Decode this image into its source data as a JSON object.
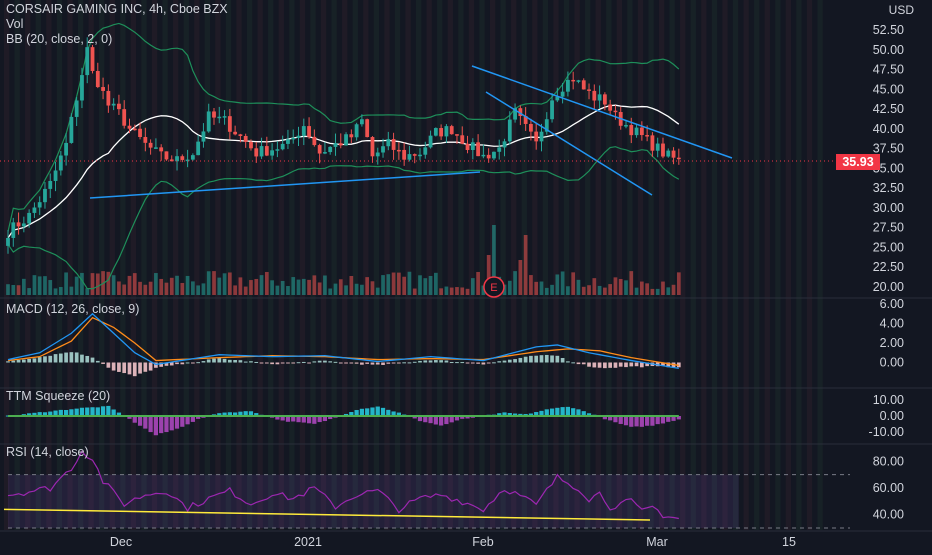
{
  "header": {
    "symbol_line": "CORSAIR GAMING INC, 4h, Cboe BZX",
    "vol_label": "Vol",
    "bb_label": "BB (20, close, 2, 0)",
    "currency": "USD",
    "last_price": "35.93",
    "earnings_marker": "E"
  },
  "panes": {
    "macd_label": "MACD (12, 26, close, 9)",
    "ttm_label": "TTM Squeeze (20)",
    "rsi_label": "RSI (14, close)"
  },
  "colors": {
    "background": "#131722",
    "up": "#26a69a",
    "down": "#ef5350",
    "bb_basis": "#ffffff",
    "bb_band": "#1e8f5a",
    "trendline": "#2196f3",
    "macd_line": "#2196f3",
    "signal_line": "#ff8c1a",
    "rsi_line": "#9c27b0",
    "rsi_trend": "#ffeb3b"
  },
  "chart_data": [
    {
      "type": "candlestick",
      "title": "CORSAIR GAMING INC, 4h, Cboe BZX",
      "ylabel": "USD",
      "ylim": [
        20,
        52.5
      ],
      "y_ticks": [
        "52.50",
        "50.00",
        "47.50",
        "45.00",
        "42.50",
        "40.00",
        "37.50",
        "35.00",
        "32.50",
        "30.00",
        "27.50",
        "25.00",
        "22.50",
        "20.00"
      ],
      "x_ticks": [
        "Dec",
        "2021",
        "Feb",
        "Mar",
        "15"
      ],
      "last_price": 35.93,
      "close_path": [
        [
          0,
          27
        ],
        [
          4,
          29
        ],
        [
          8,
          33
        ],
        [
          11,
          38
        ],
        [
          13,
          44
        ],
        [
          15,
          50
        ],
        [
          16,
          47
        ],
        [
          17,
          46
        ],
        [
          19,
          43
        ],
        [
          21,
          42
        ],
        [
          23,
          40
        ],
        [
          26,
          38
        ],
        [
          29,
          36.5
        ],
        [
          32,
          36
        ],
        [
          35,
          37
        ],
        [
          38,
          41.5
        ],
        [
          41,
          41
        ],
        [
          44,
          39
        ],
        [
          47,
          37
        ],
        [
          50,
          37.5
        ],
        [
          53,
          38
        ],
        [
          56,
          40.5
        ],
        [
          59,
          37
        ],
        [
          62,
          38
        ],
        [
          65,
          39
        ],
        [
          67,
          41
        ],
        [
          69,
          36.5
        ],
        [
          72,
          38
        ],
        [
          75,
          36.5
        ],
        [
          78,
          37
        ],
        [
          81,
          39.5
        ],
        [
          84,
          40
        ],
        [
          87,
          38
        ],
        [
          90,
          36.5
        ],
        [
          93,
          37.5
        ],
        [
          96,
          42
        ],
        [
          98,
          40
        ],
        [
          100,
          38
        ],
        [
          103,
          44
        ],
        [
          105,
          45.5
        ],
        [
          107,
          46.5
        ],
        [
          109,
          45
        ],
        [
          111,
          44
        ],
        [
          113,
          43.5
        ],
        [
          115,
          41.5
        ],
        [
          117,
          40.5
        ],
        [
          119,
          39.5
        ],
        [
          121,
          38.5
        ],
        [
          123,
          37.5
        ],
        [
          125,
          36.5
        ],
        [
          127,
          36
        ]
      ],
      "events": [
        "E"
      ]
    },
    {
      "type": "line",
      "title": "MACD (12, 26, close, 9)",
      "ylim": [
        -2,
        6
      ],
      "y_ticks": [
        "6.00",
        "4.00",
        "2.00",
        "0.00"
      ],
      "series": [
        {
          "values": [
            [
              0,
              0.3
            ],
            [
              6,
              1
            ],
            [
              12,
              3
            ],
            [
              16,
              5
            ],
            [
              20,
              3
            ],
            [
              24,
              1
            ],
            [
              28,
              -0.2
            ],
            [
              40,
              0.8
            ],
            [
              50,
              0.6
            ],
            [
              60,
              0.7
            ],
            [
              70,
              0.1
            ],
            [
              80,
              0.6
            ],
            [
              90,
              0.2
            ],
            [
              100,
              1.6
            ],
            [
              104,
              1.8
            ],
            [
              110,
              1
            ],
            [
              118,
              0.2
            ],
            [
              127,
              -0.6
            ]
          ]
        },
        {
          "values": [
            [
              0,
              0.2
            ],
            [
              6,
              0.6
            ],
            [
              12,
              2.2
            ],
            [
              16,
              4.6
            ],
            [
              20,
              3.6
            ],
            [
              24,
              2
            ],
            [
              28,
              0.2
            ],
            [
              40,
              0.5
            ],
            [
              50,
              0.7
            ],
            [
              60,
              0.6
            ],
            [
              70,
              0.3
            ],
            [
              80,
              0.4
            ],
            [
              90,
              0.3
            ],
            [
              100,
              1.1
            ],
            [
              106,
              1.4
            ],
            [
              112,
              1.2
            ],
            [
              118,
              0.5
            ],
            [
              127,
              -0.3
            ]
          ]
        }
      ]
    },
    {
      "type": "area",
      "title": "TTM Squeeze (20)",
      "ylim": [
        -15,
        15
      ],
      "y_ticks": [
        "10.00",
        "0.00",
        "-10.00"
      ],
      "series": [
        {
          "values": [
            [
              0,
              0
            ],
            [
              8,
              3
            ],
            [
              14,
              5
            ],
            [
              19,
              6
            ],
            [
              22,
              0
            ],
            [
              25,
              -6
            ],
            [
              28,
              -12
            ],
            [
              32,
              -8
            ],
            [
              36,
              -2
            ],
            [
              40,
              2
            ],
            [
              46,
              3
            ],
            [
              52,
              -3
            ],
            [
              58,
              -5
            ],
            [
              62,
              -1
            ],
            [
              66,
              4
            ],
            [
              70,
              6
            ],
            [
              74,
              2
            ],
            [
              78,
              -3
            ],
            [
              82,
              -6
            ],
            [
              86,
              -2
            ],
            [
              90,
              0
            ],
            [
              94,
              2
            ],
            [
              98,
              1
            ],
            [
              102,
              4
            ],
            [
              106,
              6
            ],
            [
              110,
              2
            ],
            [
              114,
              -3
            ],
            [
              118,
              -7
            ],
            [
              122,
              -6
            ],
            [
              127,
              -2
            ]
          ]
        }
      ]
    },
    {
      "type": "line",
      "title": "RSI (14, close)",
      "ylim": [
        30,
        90
      ],
      "y_ticks": [
        "80.00",
        "60.00",
        "40.00"
      ],
      "series": [
        {
          "values": [
            [
              0,
              55
            ],
            [
              8,
              60
            ],
            [
              12,
              75
            ],
            [
              14,
              88
            ],
            [
              16,
              82
            ],
            [
              18,
              65
            ],
            [
              22,
              48
            ],
            [
              26,
              55
            ],
            [
              30,
              58
            ],
            [
              34,
              45
            ],
            [
              38,
              52
            ],
            [
              42,
              58
            ],
            [
              46,
              48
            ],
            [
              50,
              56
            ],
            [
              54,
              52
            ],
            [
              58,
              60
            ],
            [
              62,
              46
            ],
            [
              66,
              55
            ],
            [
              70,
              58
            ],
            [
              74,
              44
            ],
            [
              78,
              52
            ],
            [
              82,
              55
            ],
            [
              86,
              50
            ],
            [
              90,
              44
            ],
            [
              94,
              60
            ],
            [
              98,
              52
            ],
            [
              100,
              47
            ],
            [
              102,
              58
            ],
            [
              104,
              68
            ],
            [
              106,
              64
            ],
            [
              108,
              60
            ],
            [
              110,
              52
            ],
            [
              112,
              56
            ],
            [
              114,
              46
            ],
            [
              116,
              48
            ],
            [
              118,
              50
            ],
            [
              120,
              42
            ],
            [
              122,
              46
            ],
            [
              124,
              40
            ],
            [
              127,
              37
            ]
          ]
        }
      ]
    }
  ]
}
